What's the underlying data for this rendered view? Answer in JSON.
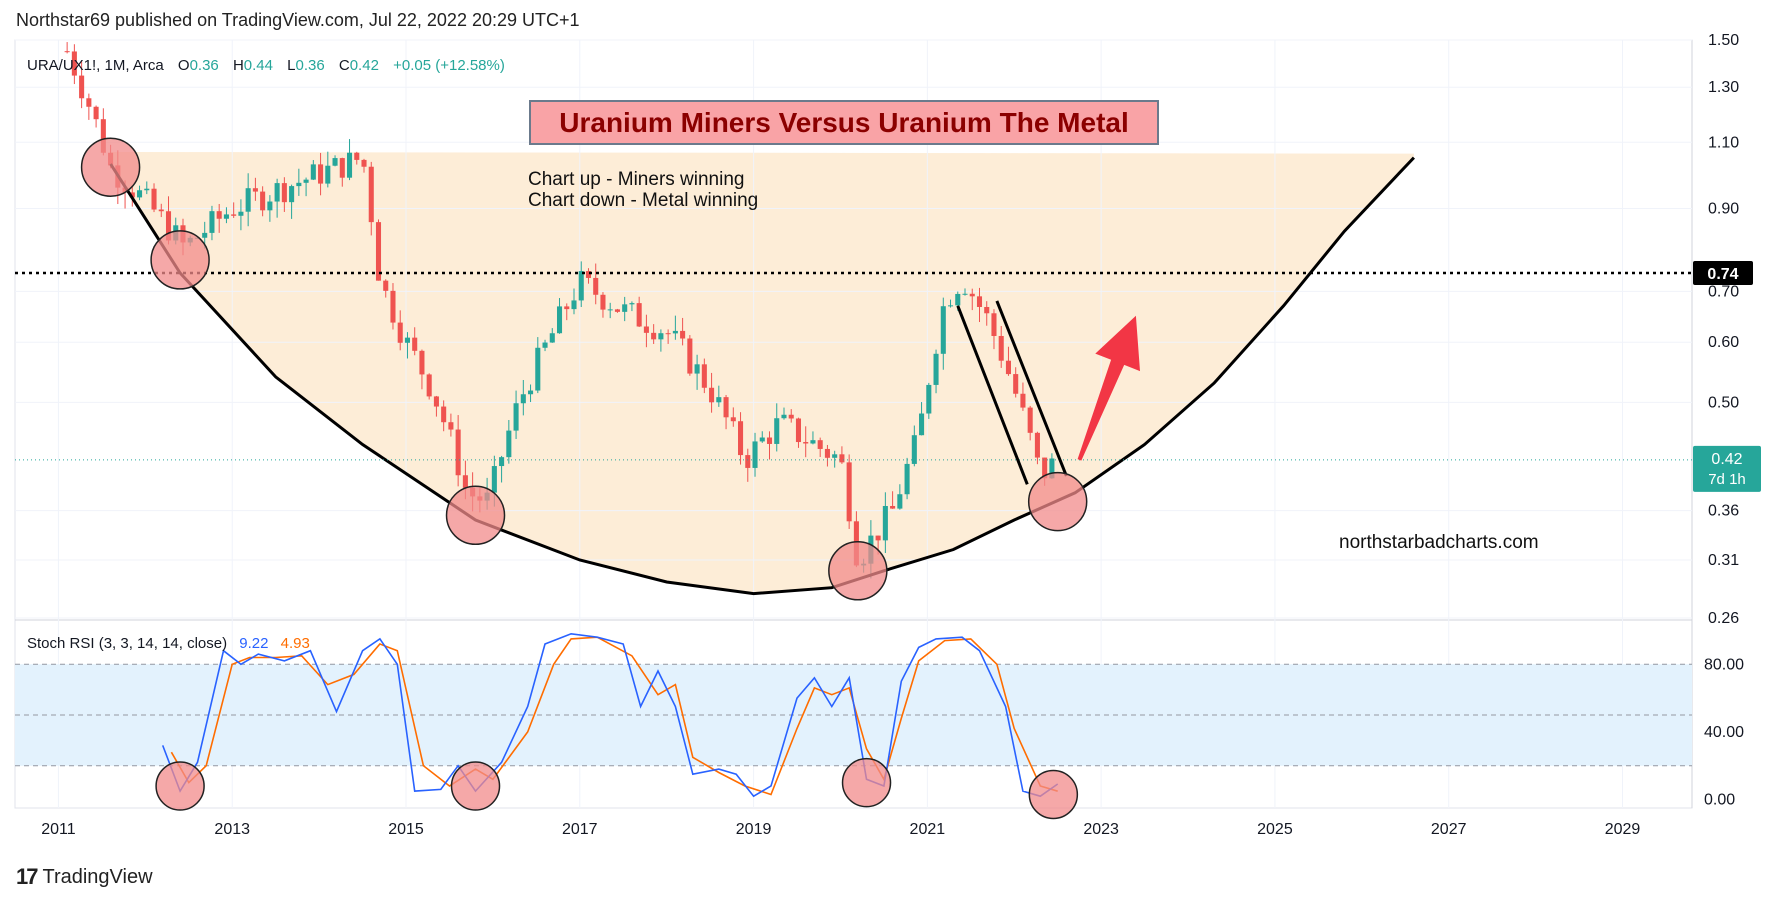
{
  "publisher": "Northstar69 published on TradingView.com, Jul 22, 2022 20:29 UTC+1",
  "brand": "TradingView",
  "brand_mark": "17",
  "colors": {
    "up": "#26a69a",
    "down": "#ef5350",
    "stoch_k": "#2962ff",
    "stoch_d": "#ff6d00",
    "bowl_fill": "#fdebd3",
    "rsi_band": "#e3f2fd",
    "circle": "#f28b8b",
    "arrow": "#f23645"
  },
  "header": {
    "symbol": "URA/UX1!, 1M, Arca",
    "o_label": "O",
    "o_value": "0.36",
    "h_label": "H",
    "h_value": "0.44",
    "l_label": "L",
    "l_value": "0.36",
    "c_label": "C",
    "c_value": "0.42",
    "change": "+0.05 (+12.58%)"
  },
  "annotations": {
    "title": "Uranium Miners Versus Uranium The Metal",
    "note_line1": "Chart up - Miners winning",
    "note_line2": "Chart down - Metal winning",
    "watermark": "northstarbadcharts.com"
  },
  "price_labels": {
    "level": "0.74",
    "last": "0.42",
    "countdown": "7d 1h"
  },
  "stoch_header": {
    "label": "Stoch RSI (3, 3, 14, 14, close)",
    "k": "9.22",
    "d": "4.93"
  },
  "chart_data": [
    {
      "type": "candlestick",
      "title": "URA/UX1!, 1M, Arca",
      "y_scale": "log",
      "ylim": [
        0.26,
        1.5
      ],
      "yticks": [
        "1.50",
        "1.30",
        "1.10",
        "0.90",
        "0.70",
        "0.60",
        "0.50",
        "0.36",
        "0.31",
        "0.26"
      ],
      "x_ticks": [
        "2011",
        "2013",
        "2015",
        "2017",
        "2019",
        "2021",
        "2023",
        "2025",
        "2027",
        "2029"
      ],
      "xlim": [
        2010.5,
        2029.8
      ],
      "horizontal_level": 0.74,
      "last_price": 0.42,
      "anchors": [
        [
          2011.1,
          1.45
        ],
        [
          2011.6,
          1.02
        ],
        [
          2012.0,
          0.92
        ],
        [
          2012.45,
          0.8
        ],
        [
          2013.0,
          0.9
        ],
        [
          2013.5,
          0.95
        ],
        [
          2014.0,
          1.0
        ],
        [
          2014.5,
          1.05
        ],
        [
          2014.7,
          0.72
        ],
        [
          2015.0,
          0.6
        ],
        [
          2015.3,
          0.52
        ],
        [
          2015.7,
          0.38
        ],
        [
          2015.95,
          0.37
        ],
        [
          2016.3,
          0.5
        ],
        [
          2016.7,
          0.62
        ],
        [
          2017.0,
          0.72
        ],
        [
          2017.5,
          0.66
        ],
        [
          2018.0,
          0.62
        ],
        [
          2018.5,
          0.52
        ],
        [
          2018.9,
          0.42
        ],
        [
          2019.3,
          0.47
        ],
        [
          2019.7,
          0.44
        ],
        [
          2020.0,
          0.42
        ],
        [
          2020.2,
          0.31
        ],
        [
          2020.6,
          0.36
        ],
        [
          2020.9,
          0.45
        ],
        [
          2021.2,
          0.68
        ],
        [
          2021.4,
          0.73
        ],
        [
          2021.7,
          0.64
        ],
        [
          2022.0,
          0.52
        ],
        [
          2022.3,
          0.4
        ],
        [
          2022.5,
          0.42
        ]
      ],
      "bowl_curve": [
        [
          2011.6,
          1.03
        ],
        [
          2012.4,
          0.74
        ],
        [
          2013.5,
          0.54
        ],
        [
          2014.5,
          0.44
        ],
        [
          2015.8,
          0.35
        ],
        [
          2017.0,
          0.31
        ],
        [
          2018.0,
          0.29
        ],
        [
          2019.0,
          0.28
        ],
        [
          2019.9,
          0.285
        ],
        [
          2020.5,
          0.3
        ],
        [
          2021.3,
          0.32
        ],
        [
          2022.0,
          0.35
        ],
        [
          2022.7,
          0.38
        ],
        [
          2023.5,
          0.44
        ],
        [
          2024.3,
          0.53
        ],
        [
          2025.1,
          0.67
        ],
        [
          2025.8,
          0.84
        ],
        [
          2026.6,
          1.05
        ]
      ],
      "trendlines": [
        [
          [
            2021.35,
            0.67
          ],
          [
            2022.15,
            0.39
          ]
        ],
        [
          [
            2021.8,
            0.68
          ],
          [
            2022.6,
            0.4
          ]
        ]
      ],
      "circled_points": [
        [
          2011.6,
          1.02
        ],
        [
          2012.4,
          0.77
        ],
        [
          2015.8,
          0.355
        ],
        [
          2020.2,
          0.3
        ],
        [
          2022.5,
          0.37
        ]
      ],
      "arrow": {
        "from": [
          2022.75,
          0.42
        ],
        "to": [
          2023.4,
          0.65
        ]
      }
    },
    {
      "type": "line",
      "title": "Stoch RSI (3, 3, 14, 14, close)",
      "ylim": [
        -5,
        105
      ],
      "yticks": [
        "80.00",
        "40.00",
        "0.00"
      ],
      "band": [
        20,
        80
      ],
      "midline": 50,
      "k_anchors": [
        [
          2012.2,
          32
        ],
        [
          2012.4,
          5
        ],
        [
          2012.6,
          22
        ],
        [
          2012.9,
          88
        ],
        [
          2013.1,
          80
        ],
        [
          2013.3,
          86
        ],
        [
          2013.6,
          82
        ],
        [
          2013.9,
          88
        ],
        [
          2014.2,
          52
        ],
        [
          2014.5,
          88
        ],
        [
          2014.7,
          95
        ],
        [
          2014.9,
          80
        ],
        [
          2015.1,
          5
        ],
        [
          2015.4,
          6
        ],
        [
          2015.6,
          20
        ],
        [
          2015.8,
          5
        ],
        [
          2016.1,
          22
        ],
        [
          2016.4,
          55
        ],
        [
          2016.6,
          92
        ],
        [
          2016.9,
          98
        ],
        [
          2017.2,
          96
        ],
        [
          2017.5,
          92
        ],
        [
          2017.7,
          55
        ],
        [
          2017.9,
          76
        ],
        [
          2018.1,
          55
        ],
        [
          2018.3,
          15
        ],
        [
          2018.6,
          18
        ],
        [
          2018.8,
          15
        ],
        [
          2019.0,
          2
        ],
        [
          2019.2,
          8
        ],
        [
          2019.5,
          60
        ],
        [
          2019.7,
          72
        ],
        [
          2019.9,
          55
        ],
        [
          2020.1,
          72
        ],
        [
          2020.3,
          12
        ],
        [
          2020.5,
          8
        ],
        [
          2020.7,
          70
        ],
        [
          2020.9,
          90
        ],
        [
          2021.1,
          95
        ],
        [
          2021.4,
          96
        ],
        [
          2021.6,
          88
        ],
        [
          2021.9,
          55
        ],
        [
          2022.1,
          5
        ],
        [
          2022.3,
          2
        ],
        [
          2022.5,
          9.22
        ]
      ],
      "d_anchors": [
        [
          2012.3,
          28
        ],
        [
          2012.5,
          10
        ],
        [
          2012.7,
          20
        ],
        [
          2013.0,
          80
        ],
        [
          2013.2,
          84
        ],
        [
          2013.5,
          84
        ],
        [
          2013.8,
          85
        ],
        [
          2014.1,
          68
        ],
        [
          2014.4,
          74
        ],
        [
          2014.7,
          92
        ],
        [
          2014.9,
          88
        ],
        [
          2015.2,
          20
        ],
        [
          2015.5,
          8
        ],
        [
          2015.8,
          18
        ],
        [
          2016.0,
          12
        ],
        [
          2016.4,
          40
        ],
        [
          2016.7,
          80
        ],
        [
          2016.9,
          95
        ],
        [
          2017.2,
          96
        ],
        [
          2017.6,
          85
        ],
        [
          2017.9,
          62
        ],
        [
          2018.1,
          68
        ],
        [
          2018.3,
          25
        ],
        [
          2018.6,
          16
        ],
        [
          2018.9,
          8
        ],
        [
          2019.2,
          3
        ],
        [
          2019.5,
          42
        ],
        [
          2019.7,
          66
        ],
        [
          2019.9,
          62
        ],
        [
          2020.1,
          66
        ],
        [
          2020.3,
          30
        ],
        [
          2020.5,
          12
        ],
        [
          2020.7,
          48
        ],
        [
          2020.9,
          82
        ],
        [
          2021.2,
          94
        ],
        [
          2021.5,
          95
        ],
        [
          2021.8,
          80
        ],
        [
          2022.0,
          42
        ],
        [
          2022.3,
          8
        ],
        [
          2022.5,
          4.93
        ]
      ],
      "circled_points": [
        [
          2012.4,
          8
        ],
        [
          2015.8,
          8
        ],
        [
          2020.3,
          10
        ],
        [
          2022.45,
          3
        ]
      ]
    }
  ]
}
